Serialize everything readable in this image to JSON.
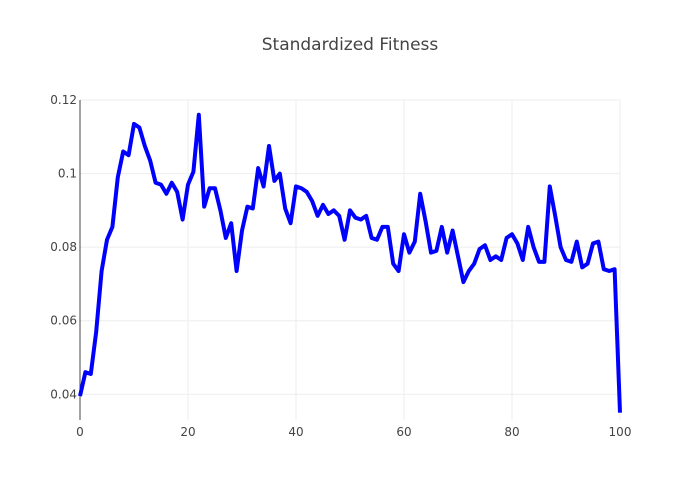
{
  "chart_data": {
    "type": "line",
    "title": "Standardized Fitness",
    "xlabel": "",
    "ylabel": "",
    "xlim": [
      0,
      100
    ],
    "ylim": [
      0.033,
      0.12
    ],
    "x_ticks": [
      0,
      20,
      40,
      60,
      80,
      100
    ],
    "x_tick_labels": [
      "0",
      "20",
      "40",
      "60",
      "80",
      "100"
    ],
    "y_ticks": [
      0.04,
      0.06,
      0.08,
      0.1,
      0.12
    ],
    "y_tick_labels": [
      "0.04",
      "0.06",
      "0.08",
      "0.1",
      "0.12"
    ],
    "grid": true,
    "legend": "none",
    "line_color": "#0000ff",
    "series": [
      {
        "x": [
          0,
          1,
          2,
          3,
          4,
          5,
          6,
          7,
          8,
          9,
          10,
          11,
          12,
          13,
          14,
          15,
          16,
          17,
          18,
          19,
          20,
          21,
          22,
          23,
          24,
          25,
          26,
          27,
          28,
          29,
          30,
          31,
          32,
          33,
          34,
          35,
          36,
          37,
          38,
          39,
          40,
          41,
          42,
          43,
          44,
          45,
          46,
          47,
          48,
          49,
          50,
          51,
          52,
          53,
          54,
          55,
          56,
          57,
          58,
          59,
          60,
          61,
          62,
          63,
          64,
          65,
          66,
          67,
          68,
          69,
          70,
          71,
          72,
          73,
          74,
          75,
          76,
          77,
          78,
          79,
          80,
          81,
          82,
          83,
          84,
          85,
          86,
          87,
          88,
          89,
          90,
          91,
          92,
          93,
          94,
          95,
          96,
          97,
          98,
          99,
          100
        ],
        "values": [
          0.0395,
          0.046,
          0.0455,
          0.057,
          0.0735,
          0.082,
          0.0855,
          0.099,
          0.106,
          0.105,
          0.1135,
          0.1125,
          0.1075,
          0.1035,
          0.0975,
          0.097,
          0.0945,
          0.0975,
          0.095,
          0.0875,
          0.097,
          0.1005,
          0.116,
          0.091,
          0.096,
          0.096,
          0.09,
          0.0825,
          0.0865,
          0.0735,
          0.0845,
          0.091,
          0.0905,
          0.1015,
          0.0965,
          0.1075,
          0.098,
          0.1,
          0.0905,
          0.0865,
          0.0965,
          0.096,
          0.095,
          0.0925,
          0.0885,
          0.0915,
          0.089,
          0.09,
          0.0885,
          0.082,
          0.09,
          0.088,
          0.0875,
          0.0885,
          0.0825,
          0.082,
          0.0855,
          0.0855,
          0.0755,
          0.0735,
          0.0835,
          0.0785,
          0.0815,
          0.0945,
          0.087,
          0.0785,
          0.079,
          0.0855,
          0.0785,
          0.0845,
          0.0775,
          0.0705,
          0.0735,
          0.0755,
          0.0795,
          0.0805,
          0.0765,
          0.0775,
          0.0765,
          0.0825,
          0.0835,
          0.081,
          0.0765,
          0.0855,
          0.08,
          0.076,
          0.076,
          0.0965,
          0.0885,
          0.08,
          0.0765,
          0.076,
          0.0815,
          0.0745,
          0.0755,
          0.081,
          0.0815,
          0.074,
          0.0735,
          0.074,
          0.035
        ]
      }
    ]
  }
}
